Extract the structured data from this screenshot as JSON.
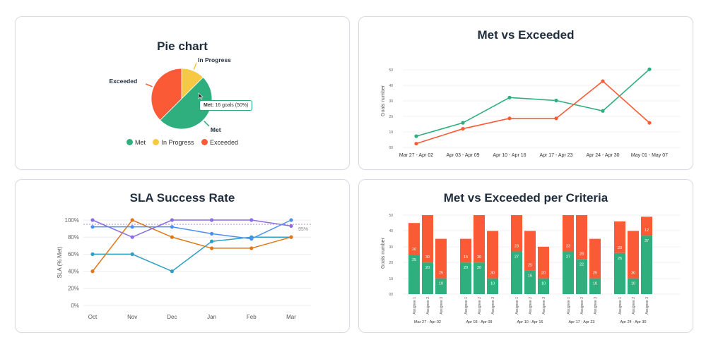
{
  "colors": {
    "met": "#2eaf7d",
    "exceeded": "#fa5a35",
    "in_progress": "#f7c843"
  },
  "pie_card": {
    "title": "Pie chart",
    "legend": [
      "Met",
      "In Progress",
      "Exceeded"
    ],
    "tooltip": {
      "label": "Met:",
      "value": "16 goals (50%)"
    }
  },
  "line_card": {
    "title": "Met vs Exceeded",
    "ylabel": "Goals number"
  },
  "sla_card": {
    "title": "SLA Success Rate",
    "ylabel": "SLA (% Met)",
    "target_label": "95%"
  },
  "stack_card": {
    "title": "Met vs Exceeded per Criteria",
    "ylabel": "Goals number"
  },
  "chart_data": [
    {
      "type": "pie",
      "title": "Pie chart",
      "slices": [
        {
          "name": "Met",
          "value": 50,
          "color": "#2eaf7d"
        },
        {
          "name": "Exceeded",
          "value": 37.5,
          "color": "#fa5a35"
        },
        {
          "name": "In Progress",
          "value": 12.5,
          "color": "#f7c843"
        }
      ],
      "legend": "bottom"
    },
    {
      "type": "line",
      "title": "Met vs Exceeded",
      "ylabel": "Goals number",
      "categories": [
        "Mar 27 - Apr 02",
        "Apr 03 - Apr 09",
        "Apr 10 - Apr 16",
        "Apr 17 - Apr 23",
        "Apr 24 - Apr 30",
        "May 01 - May 07"
      ],
      "y_ticks": [
        "00",
        "10",
        "20",
        "30",
        "40",
        "50"
      ],
      "ylim": [
        0,
        55
      ],
      "series": [
        {
          "color": "#2eaf7d",
          "values": [
            8,
            17,
            34,
            32,
            25,
            53
          ]
        },
        {
          "color": "#fa5a35",
          "values": [
            3,
            13,
            20,
            20,
            45,
            17
          ]
        }
      ]
    },
    {
      "type": "line",
      "title": "SLA Success Rate",
      "ylabel": "SLA (% Met)",
      "categories": [
        "Oct",
        "Nov",
        "Dec",
        "Jan",
        "Feb",
        "Mar"
      ],
      "y_ticks": [
        "0%",
        "20%",
        "40%",
        "60%",
        "80%",
        "100%"
      ],
      "ylim": [
        0,
        100
      ],
      "target": 95,
      "series": [
        {
          "color": "#2e9fc4",
          "values": [
            60,
            60,
            40,
            75,
            80,
            80
          ]
        },
        {
          "color": "#e07618",
          "values": [
            40,
            100,
            80,
            67,
            67,
            80
          ]
        },
        {
          "color": "#8a6dde",
          "values": [
            100,
            80,
            100,
            100,
            100,
            93
          ]
        },
        {
          "color": "#4d8ff0",
          "values": [
            92,
            92,
            92,
            84,
            78,
            100
          ]
        }
      ]
    },
    {
      "type": "bar",
      "stacked": true,
      "title": "Met vs Exceeded per Criteria",
      "ylabel": "Goals number",
      "y_ticks": [
        "00",
        "10",
        "20",
        "30",
        "40",
        "50"
      ],
      "ylim": [
        0,
        50
      ],
      "groups": [
        "Mar 27 - Apr 02",
        "Apr 03 - Apr 09",
        "Apr 10 - Apr 16",
        "Apr 17 - Apr 23",
        "Apr 24 - Apr 30"
      ],
      "categories": [
        "Assignee 1",
        "Assignee 2",
        "Assignee 3"
      ],
      "series": [
        {
          "color": "#2eaf7d",
          "values": [
            [
              25,
              20,
              10
            ],
            [
              20,
              20,
              10
            ],
            [
              27,
              15,
              10
            ],
            [
              27,
              22,
              10
            ],
            [
              26,
              10,
              37
            ]
          ]
        },
        {
          "color": "#fa5a35",
          "values": [
            [
              20,
              30,
              25
            ],
            [
              15,
              30,
              30
            ],
            [
              23,
              25,
              20
            ],
            [
              23,
              28,
              25
            ],
            [
              20,
              30,
              12
            ]
          ]
        }
      ]
    }
  ]
}
